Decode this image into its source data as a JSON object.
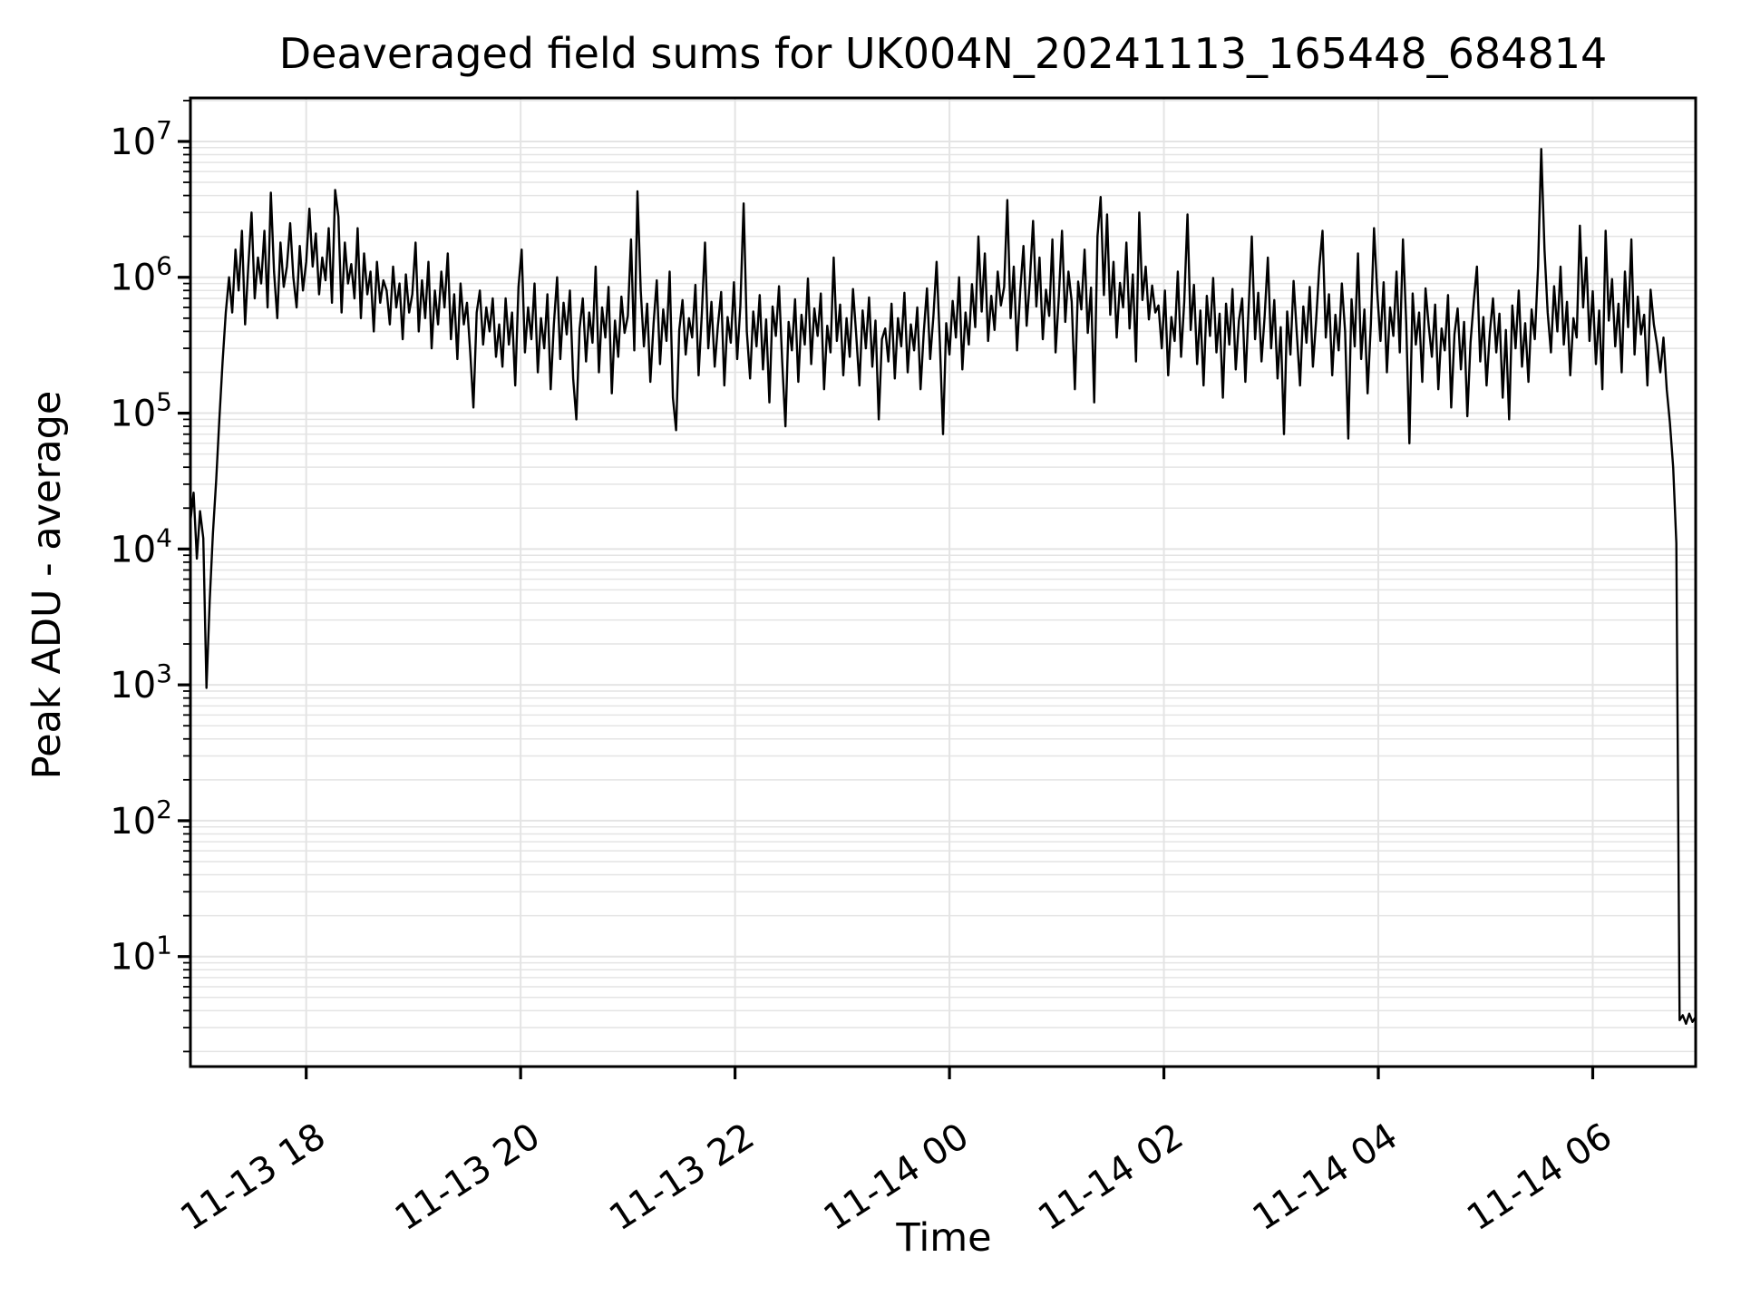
{
  "chart_data": {
    "type": "line",
    "title": "Deaveraged field sums for UK004N_20241113_165448_684814",
    "xlabel": "Time",
    "ylabel": "Peak ADU - average",
    "line_color": "#000000",
    "grid_color": "#e4e4e4",
    "background_color": "#ffffff",
    "legend": null,
    "x_axis": {
      "start_hour": 16.92,
      "end_hour": 30.96,
      "tick_hours": [
        18,
        20,
        22,
        24,
        26,
        28,
        30
      ],
      "ticklabels": [
        "11-13 18",
        "11-13 20",
        "11-13 22",
        "11-14 00",
        "11-14 02",
        "11-14 04",
        "11-14 06"
      ],
      "ticklabel_rotation_deg": -33
    },
    "y_axis": {
      "scale": "log",
      "ylim": [
        1.55,
        20900000
      ],
      "tick_exponents": [
        1,
        2,
        3,
        4,
        5,
        6,
        7
      ],
      "tick_base": "10",
      "minor_gridlines": true
    },
    "series": {
      "name": "deaveraged-field-sums",
      "t_start_hours": 16.92,
      "t_step_hours": 0.03,
      "values": [
        16000.0,
        26000.0,
        8500.0,
        19000.0,
        12000.0,
        950.0,
        4200.0,
        13000.0,
        32000.0,
        90000.0,
        240000.0,
        550000.0,
        1000000.0,
        550000.0,
        1600000.0,
        800000.0,
        2200000.0,
        450000.0,
        1200000.0,
        3000000.0,
        700000.0,
        1400000.0,
        900000.0,
        2200000.0,
        600000.0,
        4200000.0,
        1100000.0,
        500000.0,
        1800000.0,
        850000.0,
        1200000.0,
        2500000.0,
        1000000.0,
        600000.0,
        1700000.0,
        800000.0,
        1300000.0,
        3200000.0,
        1200000.0,
        2100000.0,
        750000.0,
        1400000.0,
        950000.0,
        2300000.0,
        650000.0,
        4400000.0,
        2800000.0,
        550000.0,
        1800000.0,
        900000.0,
        1250000.0,
        700000.0,
        2300000.0,
        500000.0,
        1500000.0,
        750000.0,
        1100000.0,
        400000.0,
        1300000.0,
        650000.0,
        950000.0,
        800000.0,
        450000.0,
        1200000.0,
        600000.0,
        900000.0,
        350000.0,
        1050000.0,
        550000.0,
        750000.0,
        1800000.0,
        400000.0,
        950000.0,
        500000.0,
        1300000.0,
        300000.0,
        800000.0,
        450000.0,
        1100000.0,
        600000.0,
        1500000.0,
        350000.0,
        750000.0,
        250000.0,
        900000.0,
        450000.0,
        650000.0,
        280000.0,
        110000.0,
        550000.0,
        800000.0,
        320000.0,
        600000.0,
        400000.0,
        700000.0,
        260000.0,
        450000.0,
        220000.0,
        700000.0,
        320000.0,
        550000.0,
        160000.0,
        850000.0,
        1600000.0,
        280000.0,
        600000.0,
        350000.0,
        900000.0,
        200000.0,
        500000.0,
        300000.0,
        750000.0,
        150000.0,
        450000.0,
        1000000.0,
        250000.0,
        650000.0,
        380000.0,
        800000.0,
        180000.0,
        90000.0,
        420000.0,
        700000.0,
        240000.0,
        550000.0,
        330000.0,
        1200000.0,
        200000.0,
        600000.0,
        360000.0,
        850000.0,
        140000.0,
        480000.0,
        260000.0,
        720000.0,
        390000.0,
        520000.0,
        1900000.0,
        290000.0,
        4300000.0,
        800000.0,
        310000.0,
        640000.0,
        170000.0,
        460000.0,
        950000.0,
        230000.0,
        580000.0,
        340000.0,
        1100000.0,
        130000.0,
        75000.0,
        410000.0,
        680000.0,
        270000.0,
        500000.0,
        360000.0,
        880000.0,
        190000.0,
        540000.0,
        1800000.0,
        300000.0,
        660000.0,
        220000.0,
        440000.0,
        780000.0,
        160000.0,
        510000.0,
        330000.0,
        920000.0,
        250000.0,
        620000.0,
        3500000.0,
        400000.0,
        180000.0,
        560000.0,
        310000.0,
        740000.0,
        210000.0,
        490000.0,
        120000.0,
        610000.0,
        370000.0,
        860000.0,
        240000.0,
        80000.0,
        470000.0,
        290000.0,
        690000.0,
        170000.0,
        530000.0,
        320000.0,
        980000.0,
        230000.0,
        590000.0,
        370000.0,
        760000.0,
        150000.0,
        440000.0,
        280000.0,
        1400000.0,
        340000.0,
        630000.0,
        190000.0,
        500000.0,
        260000.0,
        820000.0,
        380000.0,
        160000.0,
        570000.0,
        300000.0,
        710000.0,
        220000.0,
        480000.0,
        90000.0,
        350000.0,
        420000.0,
        240000.0,
        640000.0,
        180000.0,
        500000.0,
        310000.0,
        770000.0,
        200000.0,
        450000.0,
        290000.0,
        600000.0,
        150000.0,
        390000.0,
        830000.0,
        250000.0,
        520000.0,
        1300000.0,
        330000.0,
        70000.0,
        460000.0,
        270000.0,
        670000.0,
        360000.0,
        1000000.0,
        210000.0,
        550000.0,
        320000.0,
        890000.0,
        430000.0,
        2000000.0,
        560000.0,
        1500000.0,
        340000.0,
        730000.0,
        410000.0,
        1100000.0,
        620000.0,
        850000.0,
        3700000.0,
        500000.0,
        1200000.0,
        290000.0,
        790000.0,
        1700000.0,
        440000.0,
        960000.0,
        2600000.0,
        610000.0,
        1400000.0,
        350000.0,
        810000.0,
        520000.0,
        1900000.0,
        280000.0,
        720000.0,
        2200000.0,
        470000.0,
        1100000.0,
        660000.0,
        150000.0,
        930000.0,
        580000.0,
        1600000.0,
        390000.0,
        840000.0,
        120000.0,
        2000000.0,
        3900000.0,
        740000.0,
        2900000.0,
        530000.0,
        1300000.0,
        360000.0,
        910000.0,
        600000.0,
        1800000.0,
        420000.0,
        1050000.0,
        240000.0,
        3000000.0,
        680000.0,
        1200000.0,
        490000.0,
        870000.0,
        550000.0,
        620000.0,
        300000.0,
        800000.0,
        190000.0,
        510000.0,
        340000.0,
        1100000.0,
        260000.0,
        660000.0,
        2900000.0,
        410000.0,
        880000.0,
        230000.0,
        570000.0,
        160000.0,
        730000.0,
        370000.0,
        990000.0,
        280000.0,
        540000.0,
        130000.0,
        640000.0,
        320000.0,
        820000.0,
        210000.0,
        480000.0,
        700000.0,
        170000.0,
        590000.0,
        2000000.0,
        350000.0,
        770000.0,
        240000.0,
        520000.0,
        1400000.0,
        300000.0,
        680000.0,
        180000.0,
        430000.0,
        70000.0,
        560000.0,
        270000.0,
        940000.0,
        380000.0,
        160000.0,
        610000.0,
        330000.0,
        850000.0,
        220000.0,
        490000.0,
        1200000.0,
        2200000.0,
        360000.0,
        750000.0,
        190000.0,
        530000.0,
        290000.0,
        900000.0,
        400000.0,
        65000.0,
        690000.0,
        310000.0,
        1500000.0,
        250000.0,
        580000.0,
        140000.0,
        450000.0,
        2300000.0,
        780000.0,
        340000.0,
        920000.0,
        200000.0,
        600000.0,
        370000.0,
        1100000.0,
        280000.0,
        1900000.0,
        460000.0,
        60000.0,
        760000.0,
        320000.0,
        550000.0,
        170000.0,
        830000.0,
        440000.0,
        260000.0,
        630000.0,
        150000.0,
        420000.0,
        290000.0,
        740000.0,
        110000.0,
        380000.0,
        590000.0,
        210000.0,
        470000.0,
        95000.0,
        330000.0,
        670000.0,
        1200000.0,
        240000.0,
        510000.0,
        160000.0,
        390000.0,
        700000.0,
        280000.0,
        540000.0,
        130000.0,
        410000.0,
        90000.0,
        620000.0,
        300000.0,
        800000.0,
        220000.0,
        460000.0,
        170000.0,
        580000.0,
        350000.0,
        1200000.0,
        8800000.0,
        1600000.0,
        550000.0,
        280000.0,
        860000.0,
        400000.0,
        1200000.0,
        320000.0,
        660000.0,
        190000.0,
        500000.0,
        360000.0,
        2400000.0,
        600000.0,
        1400000.0,
        340000.0,
        790000.0,
        230000.0,
        570000.0,
        150000.0,
        2200000.0,
        480000.0,
        970000.0,
        310000.0,
        640000.0,
        200000.0,
        1100000.0,
        430000.0,
        1900000.0,
        270000.0,
        720000.0,
        380000.0,
        530000.0,
        160000.0,
        810000.0,
        450000.0,
        320000.0,
        200000.0,
        360000.0,
        150000.0,
        85000.0,
        40000.0,
        11000.0,
        3.4,
        3.7,
        3.2,
        3.8,
        3.3,
        3.6
      ]
    }
  }
}
